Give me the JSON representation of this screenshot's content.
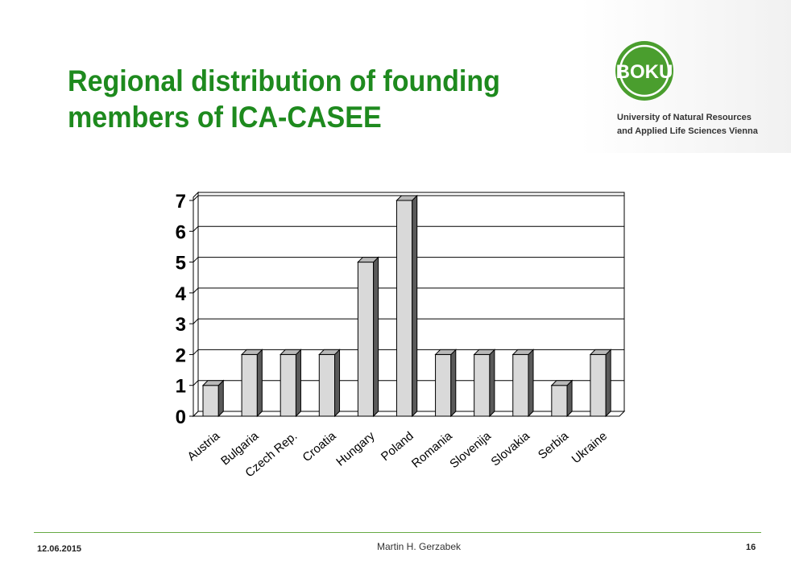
{
  "slide": {
    "title_line1": "Regional distribution of founding",
    "title_line2": "members of ICA-CASEE"
  },
  "branding": {
    "logo_text": "BOKU",
    "university_line1": "University of Natural Resources",
    "university_line2": "and Applied Life Sciences Vienna",
    "logo_color": "#4a9e2e"
  },
  "footer": {
    "date": "12.06.2015",
    "author": "Martin H. Gerzabek",
    "page": "16"
  },
  "colors": {
    "title": "#1e8a1e",
    "bar_front": "#d9d9d9",
    "bar_side": "#5a5a5a",
    "bar_top": "#b8b8b8"
  },
  "chart_data": {
    "type": "bar",
    "categories": [
      "Austria",
      "Bulgaria",
      "Czech Rep.",
      "Croatia",
      "Hungary",
      "Poland",
      "Romania",
      "Slovenija",
      "Slovakia",
      "Serbia",
      "Ukraine"
    ],
    "values": [
      1,
      2,
      2,
      2,
      5,
      7,
      2,
      2,
      2,
      1,
      2
    ],
    "yticks": [
      "0",
      "1",
      "2",
      "3",
      "4",
      "5",
      "6",
      "7"
    ],
    "ylim": [
      0,
      7
    ],
    "grid": true,
    "style": "3d-column"
  }
}
